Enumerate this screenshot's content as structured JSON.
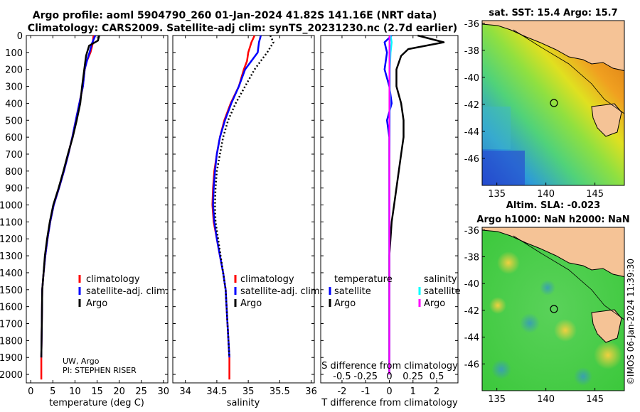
{
  "header": {
    "line1": "Argo profile: aoml 5904790_260 01-Jan-2024 41.82S 141.16E (NRT data)",
    "line2": "Climatology: CARS2009. Satellite-adj clim: synTS_20231230.nc (2.7d earlier)"
  },
  "credit": {
    "inst": "UW, Argo",
    "pi": "PI: STEPHEN RISER"
  },
  "timestamp": "©IMOS 06-Jan-2024 11:39:30",
  "colors": {
    "climatology": "#ff0000",
    "satellite": "#0000ff",
    "argo": "#000000",
    "sat_diff_S": "#00ffff",
    "argo_diff_S": "#ff00ff",
    "land": "#f5c396"
  },
  "legend": {
    "climatology": "climatology",
    "satellite_adj": "satellite-adj. clim.",
    "argo": "Argo",
    "temperature": "temperature",
    "salinity": "salinity",
    "satellite": "satellite"
  },
  "chart_data": [
    {
      "type": "line",
      "name": "temperature",
      "xlabel": "temperature (deg C)",
      "xlim": [
        -1,
        31
      ],
      "xticks": [
        0,
        5,
        10,
        15,
        20,
        25,
        30
      ],
      "ylim": [
        0,
        2050
      ],
      "yticks": [
        0,
        100,
        200,
        300,
        400,
        500,
        600,
        700,
        800,
        900,
        1000,
        1100,
        1200,
        1300,
        1400,
        1500,
        1600,
        1700,
        1800,
        1900,
        2000
      ],
      "series": [
        {
          "name": "climatology",
          "x": [
            14.2,
            14.0,
            13.5,
            12.7,
            12.2,
            11.8,
            11.0,
            10.2,
            9.4,
            8.5,
            7.5,
            6.4,
            5.2,
            4.4,
            3.8,
            3.3,
            2.9,
            2.6,
            2.5,
            2.4,
            2.4
          ],
          "y": [
            0,
            50,
            100,
            150,
            200,
            300,
            400,
            500,
            600,
            700,
            800,
            900,
            1000,
            1100,
            1200,
            1300,
            1400,
            1500,
            1700,
            1900,
            2030
          ]
        },
        {
          "name": "satellite-adj. clim.",
          "x": [
            14.6,
            13.8,
            13.3,
            12.7,
            12.2,
            11.8,
            11.0,
            10.2,
            9.4,
            8.5,
            7.5,
            6.4,
            5.2,
            4.4,
            3.8,
            3.3,
            2.9,
            2.6,
            2.5,
            2.4
          ],
          "y": [
            0,
            50,
            100,
            150,
            200,
            300,
            400,
            500,
            600,
            700,
            800,
            900,
            1000,
            1100,
            1200,
            1300,
            1400,
            1500,
            1700,
            1900
          ]
        },
        {
          "name": "Argo",
          "x": [
            15.5,
            15.2,
            13.2,
            12.5,
            12.1,
            11.6,
            11.2,
            10.4,
            9.5,
            8.4,
            7.4,
            6.3,
            5.1,
            4.3,
            3.7,
            3.2,
            2.9,
            2.6,
            2.5,
            2.4
          ],
          "y": [
            0,
            30,
            60,
            120,
            200,
            300,
            400,
            500,
            600,
            700,
            800,
            900,
            1000,
            1100,
            1200,
            1300,
            1400,
            1500,
            1700,
            1900
          ]
        }
      ]
    },
    {
      "type": "line",
      "name": "salinity",
      "xlabel": "salinity",
      "xlim": [
        33.8,
        36.05
      ],
      "xticks": [
        34,
        34.5,
        35,
        35.5,
        36
      ],
      "ylim": [
        0,
        2050
      ],
      "series": [
        {
          "name": "climatology",
          "x": [
            35.1,
            35.05,
            35.0,
            34.98,
            34.93,
            34.85,
            34.72,
            34.62,
            34.55,
            34.5,
            34.46,
            34.44,
            34.43,
            34.45,
            34.5,
            34.55,
            34.6,
            34.64,
            34.67,
            34.7,
            34.7
          ],
          "y": [
            0,
            40,
            100,
            150,
            200,
            300,
            400,
            500,
            600,
            700,
            800,
            900,
            1000,
            1100,
            1200,
            1300,
            1400,
            1500,
            1700,
            1900,
            2030
          ]
        },
        {
          "name": "satellite-adj. clim.",
          "x": [
            35.2,
            35.17,
            35.15,
            35.05,
            34.95,
            34.85,
            34.73,
            34.63,
            34.55,
            34.5,
            34.47,
            34.45,
            34.44,
            34.46,
            34.5,
            34.55,
            34.6,
            34.64,
            34.67,
            34.7
          ],
          "y": [
            0,
            40,
            100,
            150,
            200,
            300,
            400,
            500,
            600,
            700,
            800,
            900,
            1000,
            1100,
            1200,
            1300,
            1400,
            1500,
            1700,
            1900
          ]
        },
        {
          "name": "Argo",
          "x": [
            35.35,
            35.4,
            35.3,
            35.2,
            35.1,
            34.95,
            34.8,
            34.68,
            34.6,
            34.55,
            34.5,
            34.48,
            34.47,
            34.48,
            34.52,
            34.56,
            34.6,
            34.64,
            34.67,
            34.7
          ],
          "y": [
            0,
            40,
            100,
            150,
            200,
            300,
            400,
            500,
            600,
            700,
            800,
            900,
            1000,
            1100,
            1200,
            1300,
            1400,
            1500,
            1700,
            1900
          ]
        }
      ]
    },
    {
      "type": "line",
      "name": "difference",
      "xlabel": "T difference from climatology",
      "xlim": [
        -2.9,
        2.9
      ],
      "xticks": [
        -2,
        -1,
        0,
        1,
        2
      ],
      "x2label": "S difference from climatology",
      "x2ticklabels": [
        "-0.5",
        "-0.25",
        "0",
        "0.25",
        "0.5"
      ],
      "ylim": [
        0,
        2050
      ],
      "series": [
        {
          "name": "temperature satellite",
          "x": [
            0.1,
            -0.2,
            -0.1,
            -0.2,
            0.0,
            0.1,
            -0.1,
            0.0,
            0.0,
            0.0,
            0.0,
            0.0,
            0.0,
            0.0,
            0.0
          ],
          "y": [
            0,
            40,
            100,
            200,
            300,
            400,
            500,
            600,
            700,
            800,
            1000,
            1200,
            1500,
            1800,
            2000
          ]
        },
        {
          "name": "temperature Argo",
          "x": [
            1.2,
            2.3,
            0.8,
            0.5,
            0.3,
            0.3,
            0.5,
            0.6,
            0.6,
            0.5,
            0.4,
            0.3,
            0.2,
            0.1,
            0.0,
            0.0,
            0.0
          ],
          "y": [
            0,
            40,
            80,
            120,
            200,
            300,
            400,
            500,
            600,
            700,
            800,
            900,
            1000,
            1100,
            1300,
            1600,
            2000
          ]
        },
        {
          "name": "salinity satellite",
          "x": [
            0.05,
            0.1,
            0.05,
            0.02,
            0.02,
            0.01,
            0.0,
            0.0,
            0.0
          ],
          "y": [
            0,
            40,
            100,
            200,
            400,
            700,
            1000,
            1500,
            2000
          ]
        },
        {
          "name": "salinity Argo",
          "x": [
            0.01,
            0.0,
            0.0
          ],
          "y": [
            0,
            1000,
            2000
          ]
        }
      ]
    },
    {
      "type": "heatmap",
      "name": "sat_sst_map",
      "title": "sat. SST: 15.4 Argo: 15.7",
      "xticks": [
        135,
        140,
        145
      ],
      "yticks": [
        -36,
        -38,
        -40,
        -42,
        -44,
        -46
      ],
      "xlim": [
        133.5,
        148
      ],
      "ylim": [
        -48,
        -35.8
      ],
      "argo_location": [
        141.16,
        -41.82
      ]
    },
    {
      "type": "heatmap",
      "name": "sla_map",
      "title": "Altim. SLA: -0.023",
      "subtitle": "Argo h1000: NaN h2000: NaN",
      "xticks": [
        135,
        140,
        145
      ],
      "yticks": [
        -36,
        -38,
        -40,
        -42,
        -44,
        -46
      ],
      "xlim": [
        133.5,
        148
      ],
      "ylim": [
        -48,
        -35.8
      ],
      "argo_location": [
        141.16,
        -41.82
      ]
    }
  ]
}
